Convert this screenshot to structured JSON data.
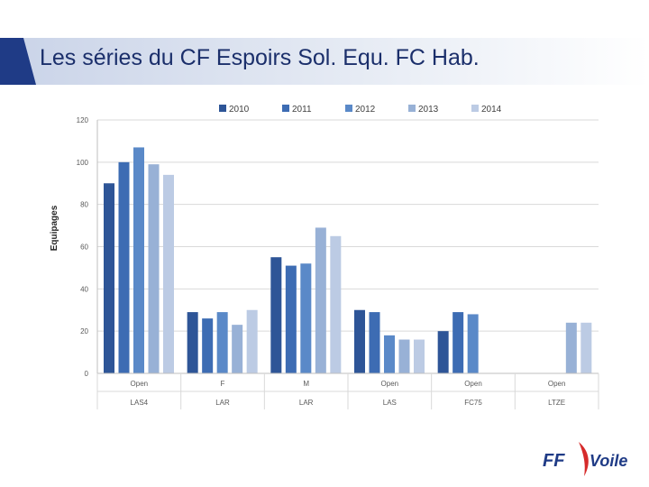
{
  "slide": {
    "title": "Les séries du CF Espoirs Sol. Equ. FC Hab."
  },
  "colors": {
    "title": "#1b2f6b",
    "header_dark": "#1f3b86",
    "series": [
      "#2e5597",
      "#3d6cb3",
      "#5a89c8",
      "#98b1d6",
      "#bccbe4"
    ],
    "grid": "#d9d9d9"
  },
  "logo": {
    "text_ff": "FF",
    "text_voile": "Voile"
  },
  "chart_data": {
    "type": "bar",
    "ylabel": "Equipages",
    "xlabel": "",
    "title": "",
    "ylim": [
      0,
      120
    ],
    "yticks": [
      0,
      20,
      40,
      60,
      80,
      100,
      120
    ],
    "grid": true,
    "legend_position": "top",
    "categories": [
      {
        "sub": "Open",
        "group": "LAS4"
      },
      {
        "sub": "F",
        "group": "LAR"
      },
      {
        "sub": "M",
        "group": "LAR"
      },
      {
        "sub": "Open",
        "group": "LAS"
      },
      {
        "sub": "Open",
        "group": "FC75"
      },
      {
        "sub": "Open",
        "group": "LTZE"
      }
    ],
    "series": [
      {
        "name": "2010",
        "values": [
          90,
          29,
          55,
          30,
          20,
          null
        ]
      },
      {
        "name": "2011",
        "values": [
          100,
          26,
          51,
          29,
          29,
          null
        ]
      },
      {
        "name": "2012",
        "values": [
          107,
          29,
          52,
          18,
          28,
          null
        ]
      },
      {
        "name": "2013",
        "values": [
          99,
          23,
          69,
          16,
          null,
          24
        ]
      },
      {
        "name": "2014",
        "values": [
          94,
          30,
          65,
          16,
          null,
          24
        ]
      }
    ]
  }
}
